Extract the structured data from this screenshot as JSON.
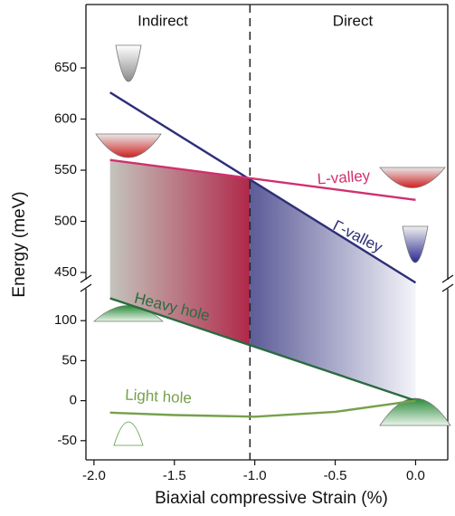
{
  "chart_data": {
    "type": "line",
    "x_label": "Biaxial compressive Strain (%)",
    "y_label": "Energy (meV)",
    "xlim": [
      -2.05,
      0.2
    ],
    "xticks": [
      {
        "value": -2,
        "label": "-2.0"
      },
      -1.5,
      {
        "value": -1,
        "label": "-1.0"
      },
      -0.5,
      {
        "value": 0,
        "label": "0.0"
      }
    ],
    "regions": [
      "Indirect",
      "Direct"
    ],
    "transition_x": -1.03,
    "panels": [
      {
        "ylim": [
          442,
          712
        ],
        "yticks": [
          450,
          500,
          550,
          600,
          650
        ],
        "series": [
          {
            "name": "Γ-valley",
            "color": "#2e2e78",
            "x": [
              -1.9,
              0
            ],
            "values": [
              626,
              440
            ]
          },
          {
            "name": "L-valley",
            "color": "#d0306e",
            "x": [
              -1.9,
              0
            ],
            "values": [
              560,
              521
            ]
          }
        ]
      },
      {
        "ylim": [
          -74,
          141
        ],
        "yticks": [
          -50,
          0,
          50,
          100
        ],
        "series": [
          {
            "name": "Heavy hole",
            "color": "#2a6b3e",
            "x": [
              -1.9,
              0
            ],
            "values": [
              128,
              0
            ]
          },
          {
            "name": "Light hole",
            "color": "#76a04c",
            "x": [
              -1.9,
              -1.5,
              -1,
              -0.5,
              0
            ],
            "values": [
              -15,
              -18,
              -20,
              -14,
              0
            ]
          }
        ]
      }
    ]
  }
}
